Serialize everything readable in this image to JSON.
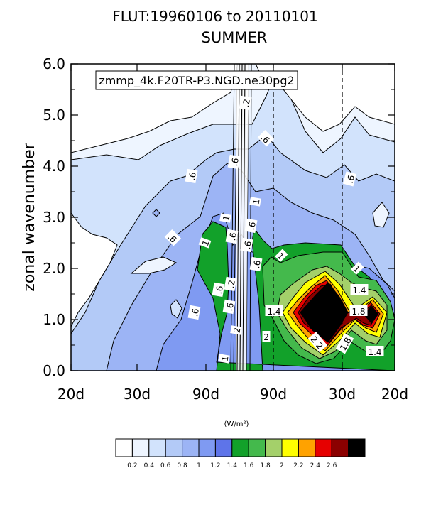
{
  "chart_data": {
    "type": "contour",
    "title": "FLUT:19960106 to 20110101",
    "subtitle": "SUMMER",
    "case_label": "zmmp_4k.F20TR-P3.NGD.ne30pg2",
    "ylabel": "zonal wavenumber",
    "ylim": [
      0,
      6
    ],
    "y_ticks": [
      "0.0",
      "1.0",
      "2.0",
      "3.0",
      "4.0",
      "5.0",
      "6.0"
    ],
    "x_ticks": [
      "20d",
      "30d",
      "90d",
      "90d",
      "30d",
      "20d"
    ],
    "colorbar": {
      "units": "(W/m²)",
      "levels": [
        "0.2",
        "0.4",
        "0.6",
        "0.8",
        "1",
        "1.2",
        "1.4",
        "1.6",
        "1.8",
        "2",
        "2.2",
        "2.4",
        "2.6"
      ],
      "colors": [
        "#ffffff",
        "#eef5ff",
        "#d2e3fc",
        "#b3caf7",
        "#9cb4f5",
        "#7f9af2",
        "#5e74e9",
        "#12a12a",
        "#44b94c",
        "#a4d06a",
        "#ffff00",
        "#ffa200",
        "#e60000",
        "#8b0000",
        "#000000"
      ]
    },
    "contour_labels": [
      ".2",
      ".6",
      ".6",
      ".6",
      ".6",
      ".6",
      ".6",
      ".6",
      ".6",
      ".6",
      "1",
      "1",
      "1",
      "1",
      "1",
      "1",
      "1.4",
      "1.4",
      "1.8",
      "1.8",
      "2.2",
      "2",
      ".6",
      ".6",
      ".2",
      ".6",
      "2",
      "1.4"
    ]
  }
}
